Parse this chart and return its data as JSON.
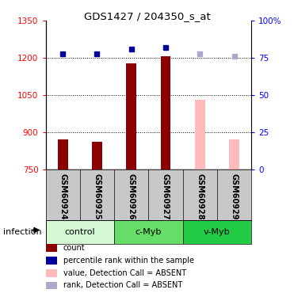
{
  "title": "GDS1427 / 204350_s_at",
  "samples": [
    "GSM60924",
    "GSM60925",
    "GSM60926",
    "GSM60927",
    "GSM60928",
    "GSM60929"
  ],
  "bar_values": [
    872,
    862,
    1178,
    1207,
    null,
    null
  ],
  "bar_values_absent": [
    null,
    null,
    null,
    null,
    1030,
    872
  ],
  "rank_values_pct": [
    78,
    78,
    81,
    82,
    78,
    76
  ],
  "rank_absent": [
    false,
    false,
    false,
    false,
    true,
    true
  ],
  "ylim_left": [
    750,
    1350
  ],
  "ylim_right": [
    0,
    100
  ],
  "yticks_left": [
    750,
    900,
    1050,
    1200,
    1350
  ],
  "yticks_right": [
    0,
    25,
    50,
    75,
    100
  ],
  "ytick_right_labels": [
    "0",
    "25",
    "50",
    "75",
    "100%"
  ],
  "groups": [
    {
      "label": "control",
      "samples": [
        0,
        1
      ],
      "color": "#d4f7d4"
    },
    {
      "label": "c-Myb",
      "samples": [
        2,
        3
      ],
      "color": "#66dd66"
    },
    {
      "label": "v-Myb",
      "samples": [
        4,
        5
      ],
      "color": "#22cc44"
    }
  ],
  "group_label": "infection",
  "bar_color_present": "#8b0000",
  "bar_color_absent": "#ffbbbb",
  "rank_color_present": "#000099",
  "rank_color_absent": "#aaaacc",
  "bar_width": 0.3,
  "bg_color": "#ffffff",
  "sample_area_color": "#c8c8c8",
  "dotted_lines": [
    900,
    1050,
    1200
  ]
}
